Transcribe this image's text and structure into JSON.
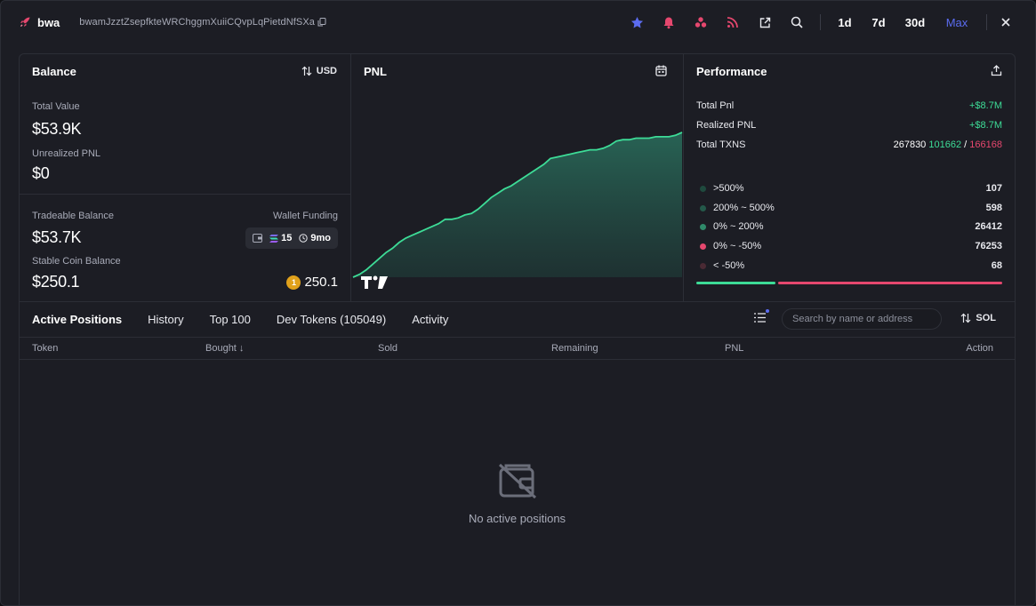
{
  "header": {
    "name": "bwa",
    "address": "bwamJzztZsepfkteWRChggmXuiiCQvpLqPietdNfSXa",
    "timeframes": [
      "1d",
      "7d",
      "30d",
      "Max"
    ],
    "active_timeframe": "Max",
    "icons": [
      "star-icon",
      "bell-icon",
      "bubbles-icon",
      "rss-icon",
      "external-link-icon",
      "search-icon",
      "close-icon"
    ]
  },
  "balance": {
    "title": "Balance",
    "currency_toggle": "USD",
    "total_value_label": "Total Value",
    "total_value": "$53.9K",
    "unrealized_label": "Unrealized PNL",
    "unrealized": "$0",
    "tradeable_label": "Tradeable Balance",
    "tradeable": "$53.7K",
    "wallet_funding_label": "Wallet Funding",
    "funding_count": "15",
    "funding_age": "9mo",
    "stable_label": "Stable Coin Balance",
    "stable": "$250.1",
    "coin_value": "250.1",
    "coin_glyph": "1"
  },
  "pnl": {
    "title": "PNL",
    "chart_logo": "TV"
  },
  "chart_data": {
    "type": "area",
    "title": "PNL",
    "xlabel": "",
    "ylabel": "",
    "grid": false,
    "values": [
      0.0,
      0.02,
      0.05,
      0.09,
      0.13,
      0.17,
      0.2,
      0.24,
      0.27,
      0.29,
      0.31,
      0.33,
      0.35,
      0.37,
      0.4,
      0.4,
      0.41,
      0.43,
      0.44,
      0.47,
      0.51,
      0.55,
      0.58,
      0.61,
      0.63,
      0.66,
      0.69,
      0.72,
      0.75,
      0.78,
      0.82,
      0.83,
      0.84,
      0.85,
      0.86,
      0.87,
      0.88,
      0.88,
      0.89,
      0.91,
      0.94,
      0.95,
      0.95,
      0.96,
      0.96,
      0.96,
      0.97,
      0.97,
      0.97,
      0.98,
      1.0
    ],
    "fill_color": "#2a6f5d",
    "line_color": "#3ddc97"
  },
  "performance": {
    "title": "Performance",
    "total_pnl_label": "Total Pnl",
    "total_pnl": "+$8.7M",
    "realized_label": "Realized PNL",
    "realized": "+$8.7M",
    "txns_label": "Total TXNS",
    "txns_total": "267830",
    "txns_buys": "101662",
    "txns_sep": "/",
    "txns_sells": "166168",
    "buckets": [
      {
        "label": ">500%",
        "value": "107",
        "color": "#1f4a3e"
      },
      {
        "label": "200% ~ 500%",
        "value": "598",
        "color": "#24594a"
      },
      {
        "label": "0% ~ 200%",
        "value": "26412",
        "color": "#2f8a6a"
      },
      {
        "label": "0% ~ -50%",
        "value": "76253",
        "color": "#e5476e"
      },
      {
        "label": "< -50%",
        "value": "68",
        "color": "#4a2a34"
      }
    ],
    "bar_split": {
      "positive": 0.26,
      "negative": 0.74,
      "positive_color": "#3ddc97",
      "negative_color": "#e5476e"
    }
  },
  "tabs": {
    "items": [
      "Active Positions",
      "History",
      "Top 100",
      "Dev Tokens (105049)",
      "Activity"
    ],
    "active": "Active Positions",
    "search_placeholder": "Search by name or address",
    "unit_toggle": "SOL"
  },
  "table": {
    "columns": [
      "Token",
      "Bought ↓",
      "Sold",
      "Remaining",
      "PNL",
      "Action"
    ],
    "empty_message": "No active positions"
  }
}
